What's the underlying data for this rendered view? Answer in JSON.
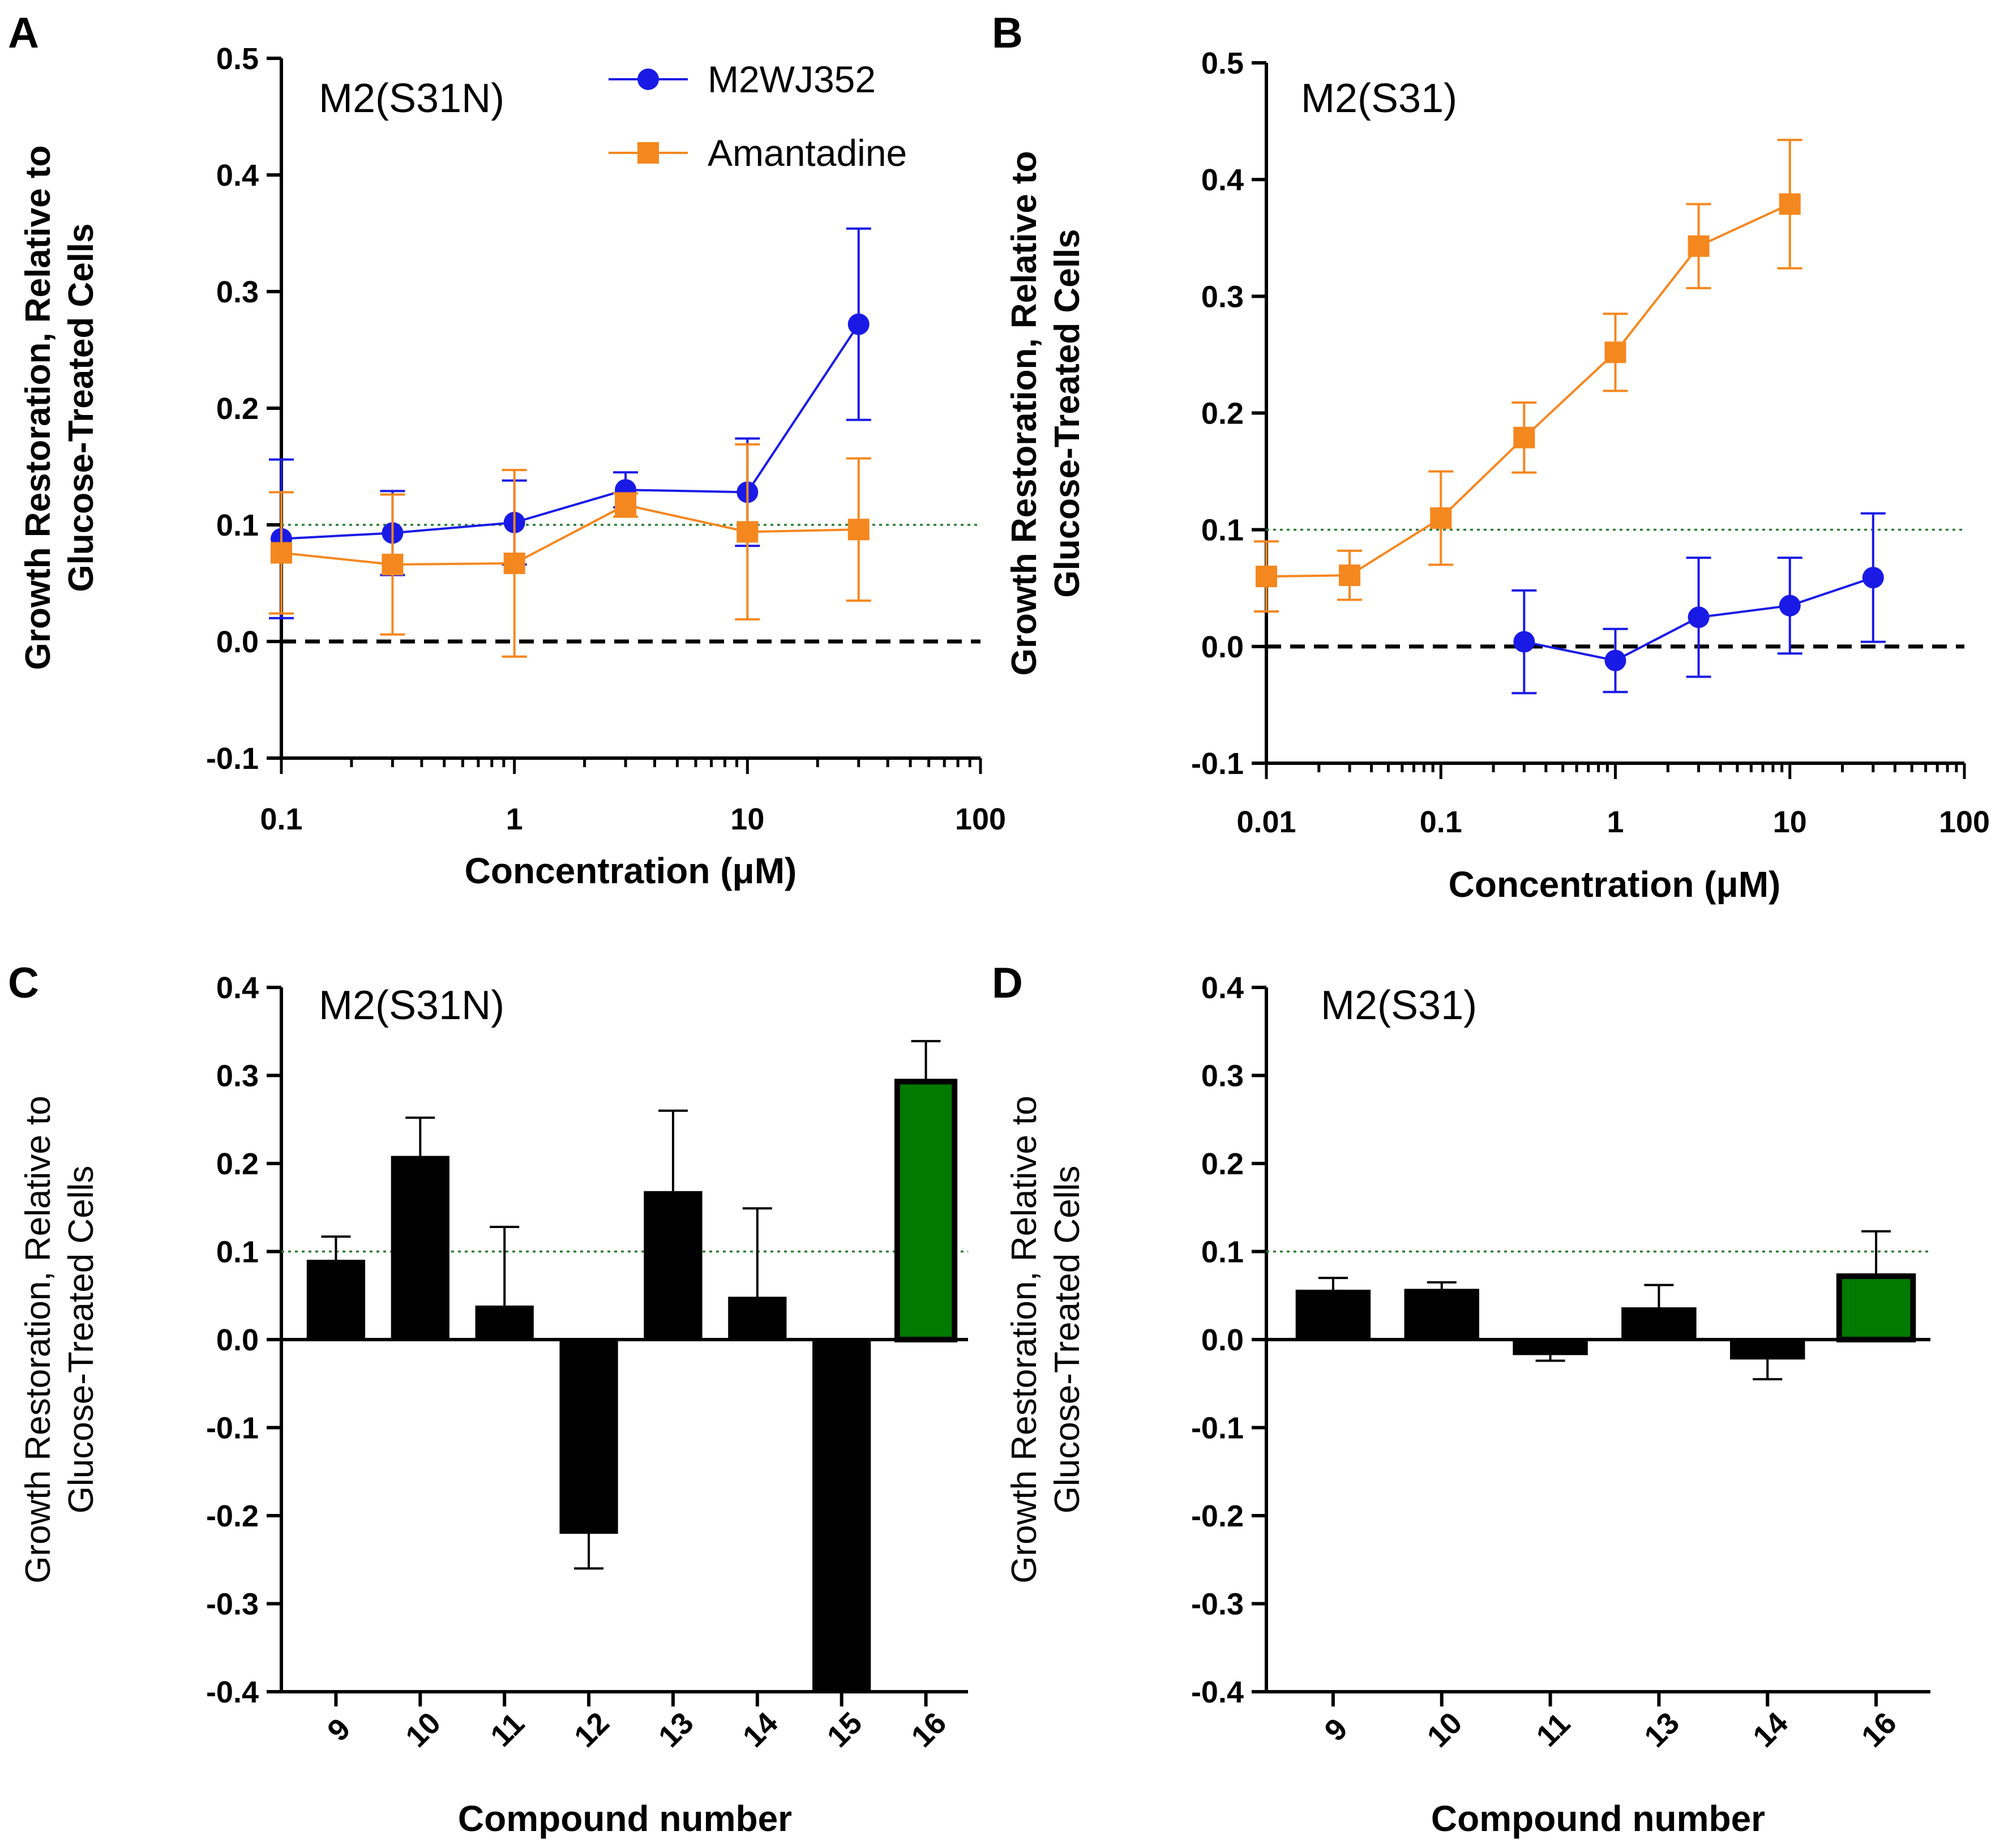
{
  "colors": {
    "blue": "#1a1ae6",
    "orange": "#f5871f",
    "green": "#007a00",
    "black": "#000000",
    "reference_dotted": "#2e7d32"
  },
  "chart_data": [
    {
      "id": "A",
      "panel_label": "A",
      "type": "line",
      "title": "M2(S31N)",
      "xlabel": "Concentration  (μM)",
      "ylabel_lines": [
        "Growth Restoration, Relative to",
        "Glucose-Treated Cells"
      ],
      "xscale": "log",
      "xlim": [
        0.1,
        100
      ],
      "ylim": [
        -0.1,
        0.5
      ],
      "x_tick_labels": [
        "0.1",
        "1",
        "10",
        "100"
      ],
      "x_tick_values": [
        0.1,
        1,
        10,
        100
      ],
      "y_tick_labels": [
        "-0.1",
        "0.0",
        "0.1",
        "0.2",
        "0.3",
        "0.4",
        "0.5"
      ],
      "y_tick_values": [
        -0.1,
        0,
        0.1,
        0.2,
        0.3,
        0.4,
        0.5
      ],
      "reference_lines": [
        {
          "y": 0,
          "style": "dashed",
          "color": "#000000"
        },
        {
          "y": 0.1,
          "style": "dotted",
          "color": "#2e7d32"
        }
      ],
      "legend": {
        "position": "top-center",
        "entries": [
          "M2WJ352",
          "Amantadine"
        ]
      },
      "series": [
        {
          "name": "M2WJ352",
          "marker": "circle",
          "color": "#1a1ae6",
          "x": [
            0.1,
            0.3,
            1,
            3,
            10,
            30
          ],
          "y": [
            0.088,
            0.093,
            0.102,
            0.13,
            0.128,
            0.272
          ],
          "err": [
            0.068,
            0.036,
            0.036,
            0.015,
            0.046,
            0.082
          ]
        },
        {
          "name": "Amantadine",
          "marker": "square",
          "color": "#f5871f",
          "x": [
            0.1,
            0.3,
            1,
            3,
            10,
            30
          ],
          "y": [
            0.076,
            0.066,
            0.067,
            0.117,
            0.094,
            0.096
          ],
          "err": [
            0.052,
            0.06,
            0.08,
            0.01,
            0.075,
            0.061
          ]
        }
      ]
    },
    {
      "id": "B",
      "panel_label": "B",
      "type": "line",
      "title": "M2(S31)",
      "xlabel": "Concentration  (μM)",
      "ylabel_lines": [
        "Growth Restoration, Relative to",
        "Glucose-Treated Cells"
      ],
      "xscale": "log",
      "xlim": [
        0.01,
        100
      ],
      "ylim": [
        -0.1,
        0.5
      ],
      "x_tick_labels": [
        "0.01",
        "0.1",
        "1",
        "10",
        "100"
      ],
      "x_tick_values": [
        0.01,
        0.1,
        1,
        10,
        100
      ],
      "y_tick_labels": [
        "-0.1",
        "0.0",
        "0.1",
        "0.2",
        "0.3",
        "0.4",
        "0.5"
      ],
      "y_tick_values": [
        -0.1,
        0,
        0.1,
        0.2,
        0.3,
        0.4,
        0.5
      ],
      "reference_lines": [
        {
          "y": 0,
          "style": "dashed",
          "color": "#000000"
        },
        {
          "y": 0.1,
          "style": "dotted",
          "color": "#2e7d32"
        }
      ],
      "series": [
        {
          "name": "Amantadine",
          "marker": "square",
          "color": "#f5871f",
          "x": [
            0.01,
            0.03,
            0.1,
            0.3,
            1,
            3,
            10
          ],
          "y": [
            0.06,
            0.061,
            0.11,
            0.179,
            0.252,
            0.343,
            0.379
          ],
          "err": [
            0.03,
            0.021,
            0.04,
            0.03,
            0.033,
            0.036,
            0.055
          ]
        },
        {
          "name": "M2WJ352",
          "marker": "circle",
          "color": "#1a1ae6",
          "x": [
            0.3,
            1,
            3,
            10,
            30
          ],
          "y": [
            0.004,
            -0.012,
            0.025,
            0.035,
            0.059
          ],
          "err": [
            0.044,
            0.027,
            0.051,
            0.041,
            0.055
          ]
        }
      ]
    },
    {
      "id": "C",
      "panel_label": "C",
      "type": "bar",
      "title": "M2(S31N)",
      "xlabel": "Compound number",
      "ylabel_lines": [
        "Growth Restoration, Relative to",
        "Glucose-Treated Cells"
      ],
      "ylim": [
        -0.4,
        0.4
      ],
      "y_tick_labels": [
        "-0.4",
        "-0.3",
        "-0.2",
        "-0.1",
        "0.0",
        "0.1",
        "0.2",
        "0.3",
        "0.4"
      ],
      "y_tick_values": [
        -0.4,
        -0.3,
        -0.2,
        -0.1,
        0,
        0.1,
        0.2,
        0.3,
        0.4
      ],
      "reference_lines": [
        {
          "y": 0.1,
          "style": "dotted",
          "color": "#2e7d32"
        }
      ],
      "categories": [
        "9",
        "10",
        "11",
        "12",
        "13",
        "14",
        "15",
        "16"
      ],
      "values": [
        0.09,
        0.208,
        0.038,
        -0.22,
        0.168,
        0.048,
        -0.4,
        0.293
      ],
      "err": [
        0.027,
        0.044,
        0.09,
        0.04,
        0.092,
        0.101,
        0.0,
        0.046
      ],
      "bar_colors": [
        "#000000",
        "#000000",
        "#000000",
        "#000000",
        "#000000",
        "#000000",
        "#000000",
        "#007a00"
      ]
    },
    {
      "id": "D",
      "panel_label": "D",
      "type": "bar",
      "title": "M2(S31)",
      "xlabel": "Compound number",
      "ylabel_lines": [
        "Growth Restoration, Relative to",
        "Glucose-Treated Cells"
      ],
      "ylim": [
        -0.4,
        0.4
      ],
      "y_tick_labels": [
        "-0.4",
        "-0.3",
        "-0.2",
        "-0.1",
        "0.0",
        "0.1",
        "0.2",
        "0.3",
        "0.4"
      ],
      "y_tick_values": [
        -0.4,
        -0.3,
        -0.2,
        -0.1,
        0,
        0.1,
        0.2,
        0.3,
        0.4
      ],
      "reference_lines": [
        {
          "y": 0.1,
          "style": "dotted",
          "color": "#2e7d32"
        }
      ],
      "categories": [
        "9",
        "10",
        "11",
        "13",
        "14",
        "16"
      ],
      "values": [
        0.056,
        0.057,
        -0.017,
        0.036,
        -0.022,
        0.072
      ],
      "err": [
        0.014,
        0.008,
        0.007,
        0.026,
        0.023,
        0.051
      ],
      "bar_colors": [
        "#000000",
        "#000000",
        "#000000",
        "#000000",
        "#000000",
        "#007a00"
      ]
    }
  ]
}
